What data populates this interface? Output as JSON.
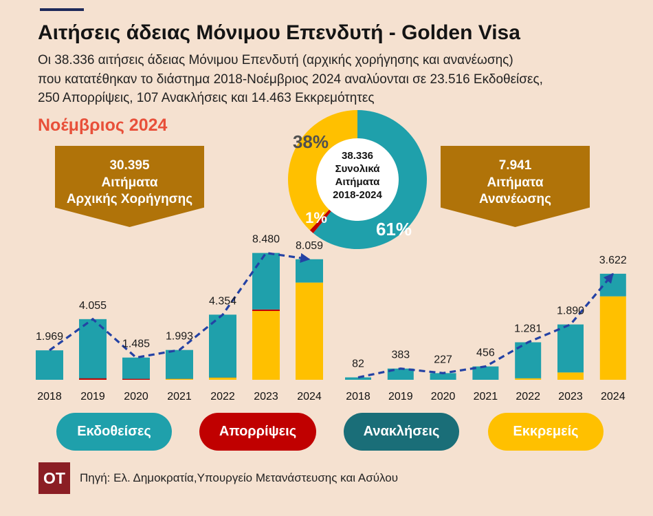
{
  "header": {
    "title": "Αιτήσεις άδειας Μόνιμου Επενδυτή - Golden Visa",
    "summary_lines": [
      "Οι 38.336 αιτήσεις άδειας Μόνιμου Επενδυτή (αρχικής χορήγησης και ανανέωσης)",
      "που κατατέθηκαν το διάστημα 2018-Νοέμβριος 2024 αναλύονται σε 23.516 Εκδοθείσες,",
      "250 Απορρίψεις, 107 Ανακλήσεις και 14.463 Εκκρεμότητες"
    ],
    "date_label": "Νοέμβριος 2024"
  },
  "summary_boxes": [
    {
      "total": "30.395",
      "line1": "Αιτήματα",
      "line2": "Αρχικής Χορήγησης"
    },
    {
      "total": "7.941",
      "line1": "Αιτήματα",
      "line2": "Ανανέωσης"
    }
  ],
  "legend": [
    {
      "label": "Εκδοθείσες",
      "color": "#1FA0AB"
    },
    {
      "label": "Απορρίψεις",
      "color": "#C00000"
    },
    {
      "label": "Ανακλήσεις",
      "color": "#1A6E78"
    },
    {
      "label": "Εκκρεμείς",
      "color": "#FFC000"
    }
  ],
  "colors": {
    "background": "#F5E1D0",
    "top_rule": "#1F2A5A",
    "date_label": "#E8503A",
    "summary_box": "#B07309",
    "trend_arrow": "#2442A4",
    "donut_hole": "#FFFFFF",
    "donut_38_label": "#505050",
    "logo": "#8B1E24"
  },
  "chart_data": [
    {
      "type": "pie",
      "donut": true,
      "center_label": [
        "38.336",
        "Συνολικά",
        "Αιτήματα",
        "2018-2024"
      ],
      "slices": [
        {
          "label": "61%",
          "value": 61,
          "color": "#1FA0AB"
        },
        {
          "label": "1%",
          "value": 1,
          "color": "#C00000"
        },
        {
          "label": "38%",
          "value": 38,
          "color": "#FFC000"
        }
      ]
    },
    {
      "type": "bar",
      "stacked": true,
      "categories": [
        "2018",
        "2019",
        "2020",
        "2021",
        "2022",
        "2023",
        "2024"
      ],
      "totals": [
        1969,
        4055,
        1485,
        1993,
        4354,
        8480,
        8059
      ],
      "value_labels": [
        "1.969",
        "4.055",
        "1.485",
        "1.993",
        "4.354",
        "8.480",
        "8.059"
      ],
      "ylim": [
        0,
        9200
      ],
      "grid": false,
      "trend_arrow": true,
      "legend_position": "bottom",
      "series": [
        {
          "color": "#FFC000",
          "values": [
            0,
            0,
            0,
            63,
            150,
            4600,
            6500
          ]
        },
        {
          "color": "#C00000",
          "values": [
            0,
            90,
            60,
            0,
            0,
            100,
            0
          ]
        },
        {
          "color": "#1A6E78",
          "values": [
            0,
            30,
            30,
            27,
            20,
            0,
            0
          ]
        },
        {
          "color": "#1FA0AB",
          "values": [
            1969,
            3935,
            1395,
            1903,
            4184,
            3780,
            1559
          ]
        }
      ]
    },
    {
      "type": "bar",
      "stacked": true,
      "categories": [
        "2018",
        "2019",
        "2020",
        "2021",
        "2022",
        "2023",
        "2024"
      ],
      "totals": [
        82,
        383,
        227,
        456,
        1281,
        1890,
        3622
      ],
      "value_labels": [
        "82",
        "383",
        "227",
        "456",
        "1.281",
        "1.890",
        "3.622"
      ],
      "ylim": [
        0,
        4700
      ],
      "grid": false,
      "trend_arrow": true,
      "legend_position": "bottom",
      "series": [
        {
          "color": "#FFC000",
          "values": [
            0,
            0,
            0,
            0,
            50,
            250,
            2850
          ]
        },
        {
          "color": "#C00000",
          "values": [
            0,
            0,
            0,
            0,
            0,
            0,
            0
          ]
        },
        {
          "color": "#1A6E78",
          "values": [
            0,
            0,
            0,
            0,
            0,
            0,
            0
          ]
        },
        {
          "color": "#1FA0AB",
          "values": [
            82,
            383,
            227,
            456,
            1231,
            1640,
            772
          ]
        }
      ]
    }
  ],
  "source": {
    "logo_text": "OT",
    "text": "Πηγή: Ελ. Δημοκρατία,Υπουργείο Μετανάστευσης και Ασύλου"
  }
}
